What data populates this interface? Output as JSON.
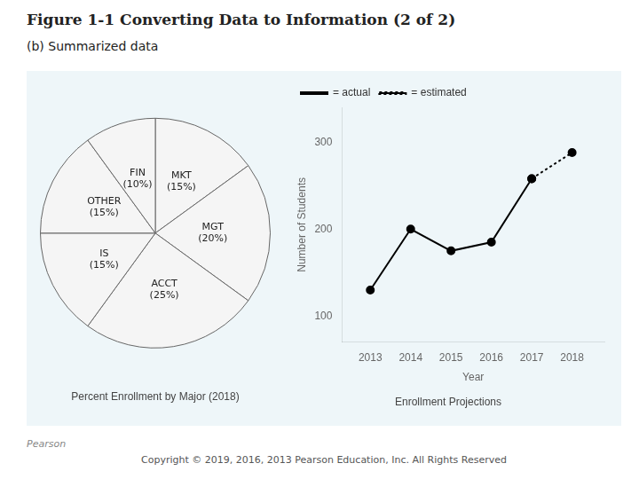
{
  "title": "Figure 1-1 Converting Data to Information (2 of 2)",
  "subtitle": "(b) Summarized data",
  "annotations": [
    "Copyright © 2019, 2016, 2013 Pearson Education, Inc. All Rights Reserved",
    "Pearson"
  ],
  "chart_data": [
    {
      "type": "pie",
      "title": "Percent Enrollment by Major (2018)",
      "categories": [
        "MKT",
        "MGT",
        "ACCT",
        "IS",
        "OTHER",
        "FIN"
      ],
      "values": [
        15,
        20,
        25,
        15,
        15,
        10
      ],
      "value_labels": [
        "(15%)",
        "(20%)",
        "(25%)",
        "(15%)",
        "(15%)",
        "(10%)"
      ],
      "data_labels": true,
      "color": "#f5f5f5"
    },
    {
      "type": "line",
      "title": "Enrollment Projections",
      "x_label": "Year",
      "y_label": "Number of Students",
      "series": [
        {
          "name": "= actual",
          "color": "#000000",
          "marker": "circle",
          "line_style": "solid",
          "x": [
            2013,
            2014,
            2015,
            2016,
            2017
          ],
          "values": [
            130,
            200,
            175,
            185,
            258
          ]
        },
        {
          "name": "= estimated",
          "color": "#000000",
          "marker": "circle",
          "line_style": "dotted",
          "x": [
            2017,
            2018
          ],
          "values": [
            258,
            288
          ]
        }
      ],
      "xlim": [
        2012.3,
        2018.8
      ],
      "xticks": [
        2013,
        2014,
        2015,
        2016,
        2017,
        2018
      ],
      "ylim": [
        70,
        340
      ],
      "yticks": [
        100,
        200,
        300
      ],
      "grid": false,
      "legend": "upper left"
    }
  ]
}
